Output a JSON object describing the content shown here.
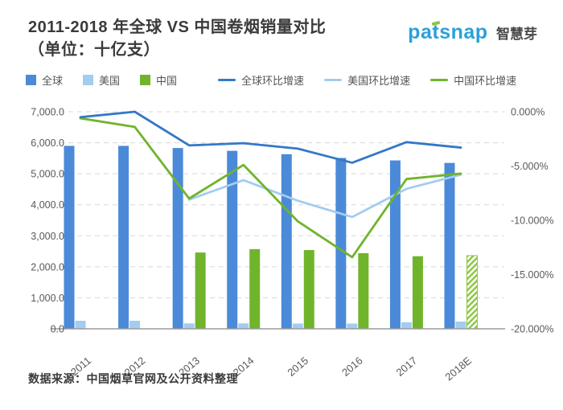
{
  "header": {
    "title_line1": "2011-2018 年全球 VS 中国卷烟销量对比",
    "title_line2": "（单位：十亿支）",
    "logo_en_1": "pa",
    "logo_en_t": "t",
    "logo_en_2": "snap",
    "logo_cn": "智慧芽"
  },
  "legend": {
    "items": [
      {
        "label": "全球",
        "type": "bar",
        "color": "#4a8ad8"
      },
      {
        "label": "美国",
        "type": "bar",
        "color": "#a3ccf0"
      },
      {
        "label": "中国",
        "type": "bar",
        "color": "#70b42c"
      },
      {
        "label": "全球环比增速",
        "type": "line",
        "color": "#3478c8"
      },
      {
        "label": "美国环比增速",
        "type": "line",
        "color": "#a3ccf0"
      },
      {
        "label": "中国环比增速",
        "type": "line",
        "color": "#70b42c"
      }
    ]
  },
  "chart_data": {
    "type": "bar+line combo",
    "title": "2011-2018 年全球 VS 中国卷烟销量对比（单位：十亿支）",
    "categories": [
      "2011",
      "2012",
      "2013",
      "2014",
      "2015",
      "2016",
      "2017",
      "2018E"
    ],
    "bar_series": [
      {
        "name": "全球",
        "color": "#4a8ad8",
        "values": [
          5900,
          5900,
          5830,
          5740,
          5630,
          5510,
          5430,
          5350
        ]
      },
      {
        "name": "美国",
        "color": "#a3ccf0",
        "values": [
          260,
          260,
          175,
          175,
          170,
          170,
          210,
          235
        ]
      },
      {
        "name": "中国",
        "color": "#70b42c",
        "hatched_last": true,
        "values": [
          null,
          null,
          2460,
          2570,
          2540,
          2440,
          2340,
          2360
        ]
      }
    ],
    "line_series": [
      {
        "name": "全球环比增速",
        "color": "#3478c8",
        "values": [
          -0.5,
          0.0,
          -3.1,
          -2.9,
          -3.4,
          -4.7,
          -2.8,
          -3.3
        ]
      },
      {
        "name": "美国环比增速",
        "color": "#a3ccf0",
        "values": [
          null,
          null,
          -8.1,
          -6.3,
          -8.2,
          -9.7,
          -7.1,
          -5.8
        ]
      },
      {
        "name": "中国环比增速",
        "color": "#70b42c",
        "values": [
          -0.6,
          -1.4,
          -8.0,
          -4.9,
          -10.1,
          -13.4,
          -6.2,
          -5.7
        ]
      }
    ],
    "left_axis": {
      "ticks": [
        "7,000.0",
        "6,000.0",
        "5,000.0",
        "4,000.0",
        "3,000.0",
        "2,000.0",
        "1,000.0",
        "0.0"
      ],
      "min": 0,
      "max": 7000
    },
    "right_axis": {
      "ticks": [
        "0.000%",
        "-5.000%",
        "-10.000%",
        "-15.000%",
        "-20.000%"
      ],
      "min": -20,
      "max": 0
    },
    "grid": "horizontal dashed",
    "legend_position": "top-left",
    "hatch_color": "#8cc63f"
  },
  "footer": {
    "source": "数据来源：中国烟草官网及公开资料整理"
  }
}
